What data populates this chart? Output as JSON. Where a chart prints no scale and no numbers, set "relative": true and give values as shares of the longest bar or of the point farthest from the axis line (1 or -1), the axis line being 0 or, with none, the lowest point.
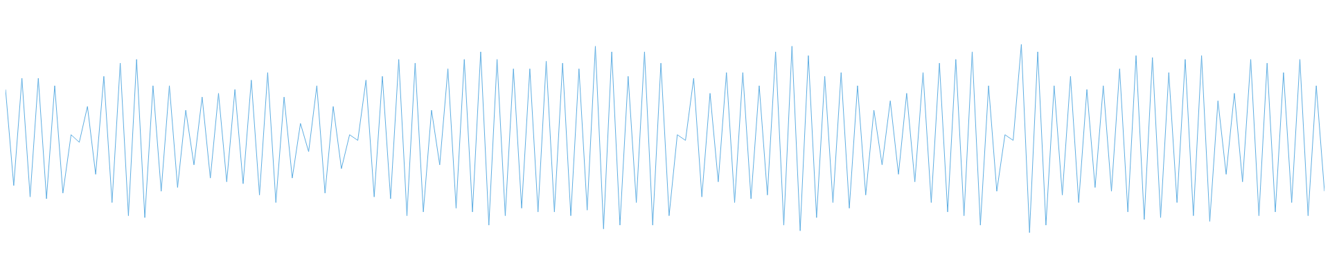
{
  "chart_data": {
    "type": "line",
    "relative": true,
    "color": "#5dade2",
    "categories": [
      null,
      null,
      null,
      null,
      null,
      null,
      null,
      null,
      null,
      null,
      null,
      null,
      null,
      null,
      null,
      null,
      null,
      null,
      null,
      null,
      null,
      null,
      null,
      null,
      null,
      null,
      null,
      null,
      null,
      null,
      null,
      null,
      null,
      null,
      null,
      null,
      null,
      null,
      null,
      null,
      null,
      null,
      null,
      null,
      null,
      null,
      null,
      null,
      null,
      null,
      null,
      null,
      null,
      null,
      null,
      null,
      null,
      null,
      null,
      null,
      null,
      null,
      null,
      null,
      null,
      null,
      null,
      null,
      null,
      null,
      null,
      null,
      null,
      null,
      null,
      null,
      null,
      null,
      null,
      null,
      null,
      null,
      null,
      null,
      null,
      null,
      null,
      null,
      null,
      null,
      null,
      null,
      null,
      null,
      null,
      null,
      null,
      null,
      null,
      null,
      null,
      null,
      null,
      null,
      null,
      null,
      null,
      null,
      null,
      null,
      null,
      null,
      null,
      null,
      null,
      null,
      null,
      null,
      null,
      null,
      null,
      null,
      null,
      null,
      null,
      null,
      null,
      null,
      null,
      null,
      null,
      null,
      null,
      null,
      null,
      null,
      null,
      null,
      null,
      null,
      null,
      null,
      null,
      null,
      null,
      null,
      null,
      null,
      null,
      null,
      null,
      null,
      null,
      null,
      null,
      null,
      null,
      null,
      null,
      null,
      null,
      null
    ],
    "values": [
      0.76,
      0.25,
      0.82,
      0.19,
      0.82,
      0.18,
      0.78,
      0.21,
      0.52,
      0.48,
      0.67,
      0.31,
      0.83,
      0.16,
      0.9,
      0.09,
      0.92,
      0.08,
      0.78,
      0.22,
      0.78,
      0.24,
      0.65,
      0.36,
      0.72,
      0.29,
      0.74,
      0.27,
      0.76,
      0.26,
      0.81,
      0.2,
      0.85,
      0.16,
      0.72,
      0.29,
      0.58,
      0.43,
      0.78,
      0.21,
      0.67,
      0.34,
      0.52,
      0.49,
      0.81,
      0.19,
      0.83,
      0.18,
      0.92,
      0.09,
      0.9,
      0.11,
      0.65,
      0.36,
      0.87,
      0.13,
      0.92,
      0.11,
      0.96,
      0.04,
      0.92,
      0.09,
      0.87,
      0.13,
      0.87,
      0.11,
      0.91,
      0.11,
      0.9,
      0.09,
      0.87,
      0.12,
      0.99,
      0.02,
      0.96,
      0.04,
      0.83,
      0.16,
      0.96,
      0.04,
      0.9,
      0.09,
      0.52,
      0.49,
      0.82,
      0.19,
      0.74,
      0.27,
      0.85,
      0.16,
      0.85,
      0.18,
      0.78,
      0.2,
      0.96,
      0.04,
      0.99,
      0.01,
      0.94,
      0.08,
      0.83,
      0.16,
      0.85,
      0.13,
      0.78,
      0.2,
      0.65,
      0.36,
      0.7,
      0.31,
      0.74,
      0.27,
      0.85,
      0.16,
      0.9,
      0.11,
      0.92,
      0.09,
      0.96,
      0.04,
      0.78,
      0.22,
      0.52,
      0.49,
      1.0,
      0,
      0.96,
      0.04,
      0.78,
      0.2,
      0.83,
      0.16,
      0.76,
      0.24,
      0.78,
      0.22,
      0.87,
      0.11,
      0.94,
      0.07,
      0.93,
      0.08,
      0.85,
      0.16,
      0.92,
      0.09,
      0.94,
      0.06,
      0.7,
      0.31,
      0.74,
      0.27,
      0.92,
      0.09,
      0.9,
      0.11,
      0.85,
      0.16,
      0.92,
      0.09,
      0.78,
      0.22
    ]
  }
}
